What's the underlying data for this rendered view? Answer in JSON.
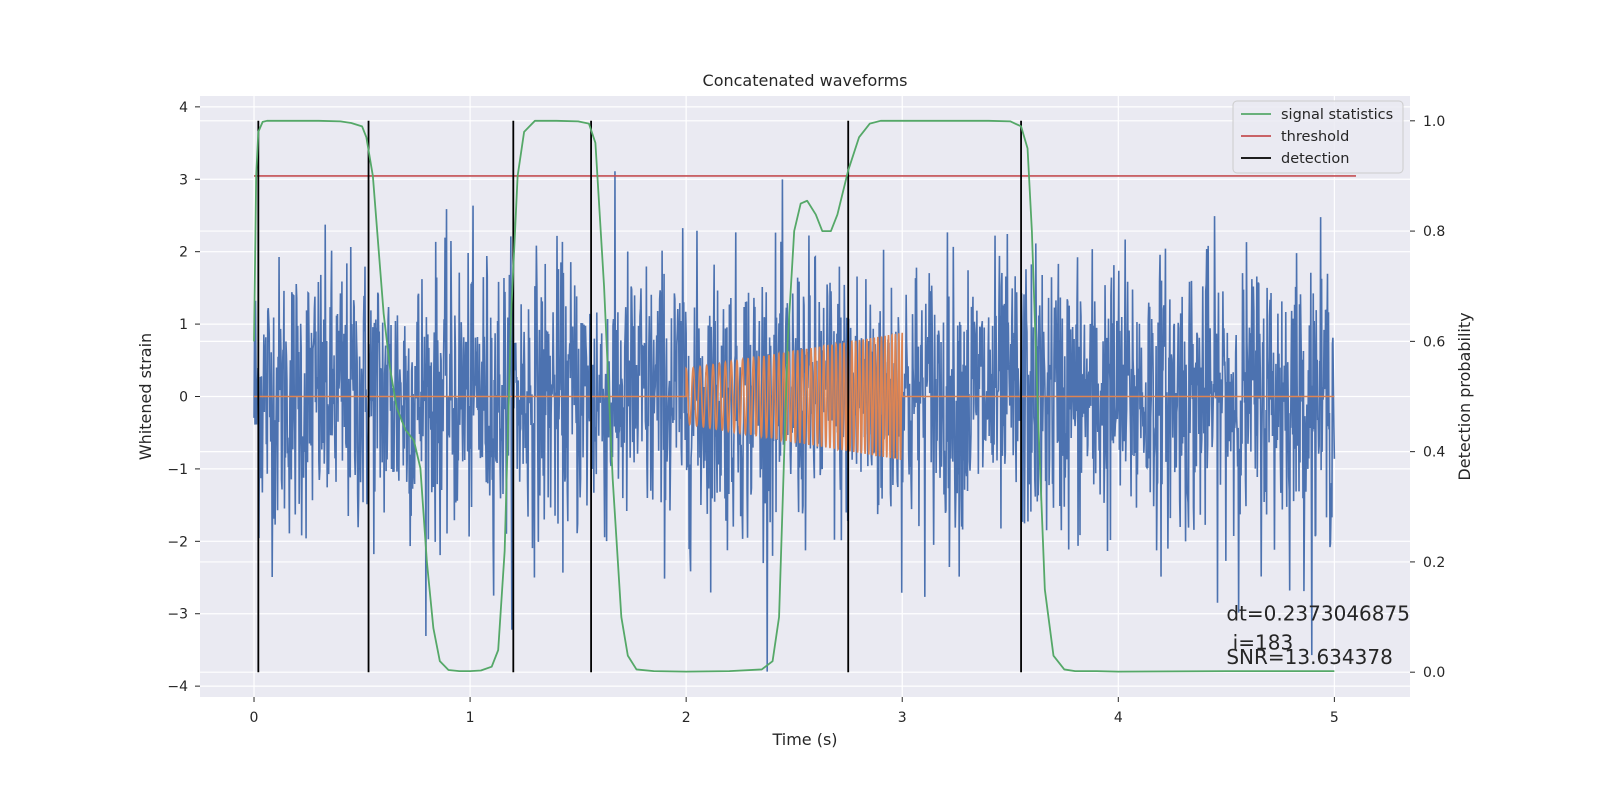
{
  "chart_data": {
    "type": "line",
    "title": "Concatenated waveforms",
    "xlabel": "Time (s)",
    "ylabel_left": "Whitened strain",
    "ylabel_right": "Detection probability",
    "xlim": [
      -0.25,
      5.35
    ],
    "ylim_left": [
      -4.15,
      4.15
    ],
    "ylim_right": [
      -0.045,
      1.045
    ],
    "xticks": [
      0,
      1,
      2,
      3,
      4,
      5
    ],
    "yticks_left": [
      -4,
      -3,
      -2,
      -1,
      0,
      1,
      2,
      3,
      4
    ],
    "yticks_right": [
      0.0,
      0.2,
      0.4,
      0.6,
      0.8,
      1.0
    ],
    "grid": true,
    "legend_position": "top-right",
    "colors": {
      "background": "#eaeaf2",
      "strain": "#4c72b0",
      "injected": "#dd8452",
      "signal_statistics": "#55a868",
      "threshold": "#c44e52",
      "detection": "#000000"
    },
    "series": [
      {
        "name": "",
        "axis": "left",
        "description_values": "whitened strain noise, time 0 to 5 s, amplitude roughly between -3.8 and 3.8",
        "x_range": [
          0,
          5
        ],
        "amplitude_max": 3.8
      },
      {
        "name": "",
        "axis": "left",
        "x_range": [
          0,
          5
        ],
        "chirp": {
          "start": 2.0,
          "end": 3.0,
          "amp_start": 0.38,
          "amp_end": 0.88
        }
      },
      {
        "name": "signal statistics",
        "axis": "right",
        "x": [
          0.0,
          0.01,
          0.02,
          0.04,
          0.06,
          0.1,
          0.2,
          0.3,
          0.4,
          0.45,
          0.5,
          0.52,
          0.55,
          0.6,
          0.63,
          0.66,
          0.7,
          0.74,
          0.77,
          0.8,
          0.83,
          0.86,
          0.9,
          0.95,
          1.0,
          1.05,
          1.1,
          1.13,
          1.16,
          1.19,
          1.22,
          1.25,
          1.3,
          1.4,
          1.5,
          1.55,
          1.58,
          1.62,
          1.66,
          1.7,
          1.73,
          1.77,
          1.85,
          2.0,
          2.2,
          2.35,
          2.4,
          2.43,
          2.45,
          2.47,
          2.5,
          2.53,
          2.56,
          2.6,
          2.63,
          2.67,
          2.7,
          2.75,
          2.8,
          2.85,
          2.9,
          3.0,
          3.2,
          3.4,
          3.5,
          3.55,
          3.58,
          3.6,
          3.63,
          3.66,
          3.7,
          3.75,
          3.8,
          3.9,
          4.0,
          4.5,
          5.0
        ],
        "y": [
          0.6,
          0.9,
          0.98,
          0.998,
          1.0,
          1.0,
          1.0,
          1.0,
          0.999,
          0.996,
          0.99,
          0.97,
          0.9,
          0.65,
          0.55,
          0.48,
          0.44,
          0.42,
          0.37,
          0.2,
          0.08,
          0.02,
          0.004,
          0.002,
          0.002,
          0.003,
          0.01,
          0.04,
          0.22,
          0.65,
          0.9,
          0.98,
          1.0,
          1.0,
          0.999,
          0.995,
          0.96,
          0.7,
          0.35,
          0.1,
          0.03,
          0.005,
          0.002,
          0.001,
          0.002,
          0.005,
          0.02,
          0.1,
          0.35,
          0.6,
          0.8,
          0.85,
          0.855,
          0.83,
          0.8,
          0.8,
          0.83,
          0.91,
          0.97,
          0.995,
          1.0,
          1.0,
          1.0,
          1.0,
          0.999,
          0.99,
          0.95,
          0.8,
          0.45,
          0.15,
          0.03,
          0.005,
          0.002,
          0.002,
          0.001,
          0.002,
          0.002
        ]
      },
      {
        "name": "threshold",
        "axis": "right",
        "x": [
          0.0,
          5.1
        ],
        "y": [
          0.9,
          0.9
        ]
      },
      {
        "name": "detection",
        "axis": "right",
        "x": [
          0.02,
          0.53,
          1.2,
          1.56,
          2.75,
          3.55
        ],
        "y_range": [
          0.0,
          1.0
        ]
      }
    ],
    "annotations": [
      {
        "text": "dt=0.2373046875",
        "x": 4.5,
        "y": -3.0
      },
      {
        "text": " i=183",
        "x": 4.5,
        "y": -3.4
      },
      {
        "text": "SNR=13.634378",
        "x": 4.5,
        "y": -3.6
      }
    ]
  }
}
